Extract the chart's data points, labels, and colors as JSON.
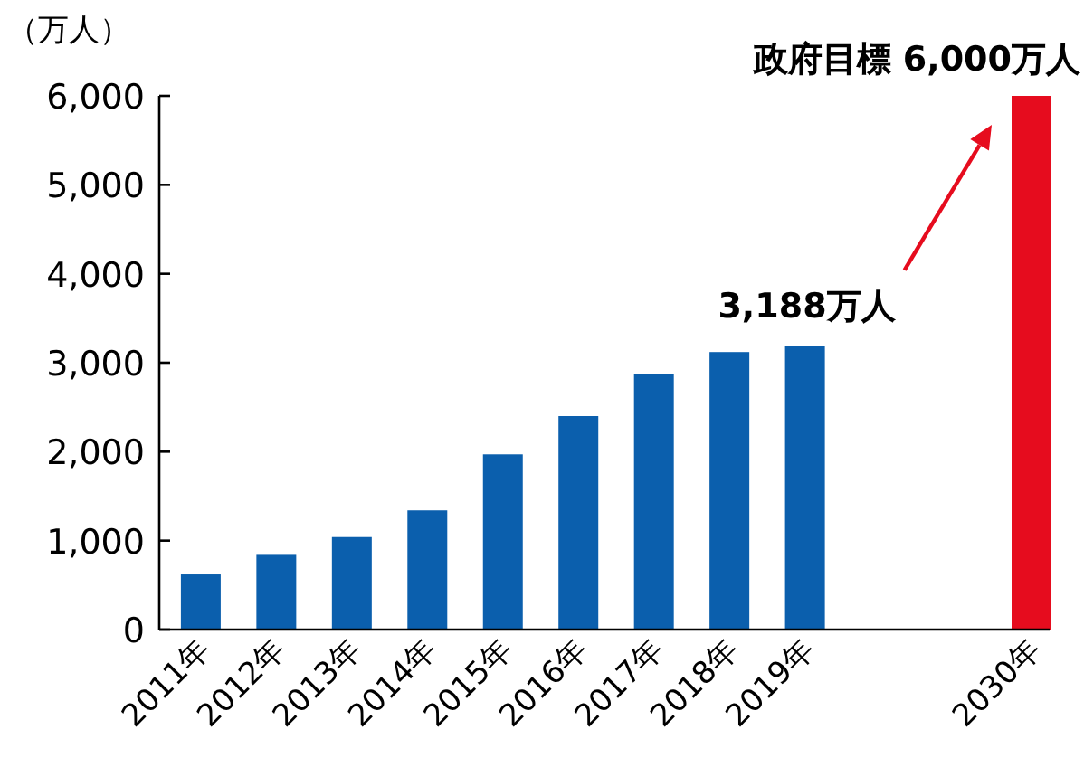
{
  "chart_data": {
    "type": "bar",
    "ylabel": "（万人）",
    "categories": [
      "2011年",
      "2012年",
      "2013年",
      "2014年",
      "2015年",
      "2016年",
      "2017年",
      "2018年",
      "2019年",
      null,
      null,
      "2030年"
    ],
    "values": [
      620,
      840,
      1040,
      1340,
      1970,
      2400,
      2870,
      3120,
      3188,
      null,
      null,
      6000
    ],
    "colors": [
      "#0b5fad",
      "#0b5fad",
      "#0b5fad",
      "#0b5fad",
      "#0b5fad",
      "#0b5fad",
      "#0b5fad",
      "#0b5fad",
      "#0b5fad",
      null,
      null,
      "#e60c1e"
    ],
    "ylim": [
      0,
      6000
    ],
    "yticks": [
      {
        "value": 0,
        "label": "0"
      },
      {
        "value": 1000,
        "label": "1,000"
      },
      {
        "value": 2000,
        "label": "2,000"
      },
      {
        "value": 3000,
        "label": "3,000"
      },
      {
        "value": 4000,
        "label": "4,000"
      },
      {
        "value": 5000,
        "label": "5,000"
      },
      {
        "value": 6000,
        "label": "6,000"
      }
    ],
    "grid": false,
    "annotations": [
      {
        "text": "3,188万人",
        "x": "2019年",
        "y": 3188
      },
      {
        "text": "政府目標 6,000万人",
        "x": "2030年",
        "y": 6000
      }
    ]
  }
}
